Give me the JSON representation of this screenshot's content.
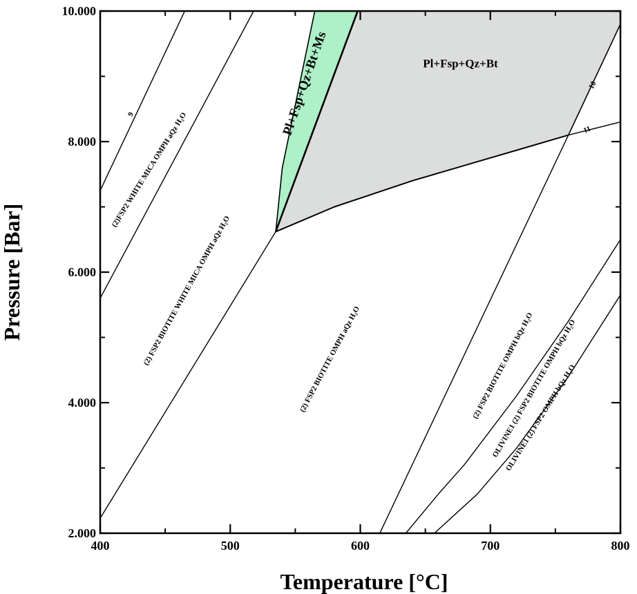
{
  "chart_data": {
    "type": "phase_diagram",
    "xlabel": "Temperature [°C]",
    "ylabel": "Pressure [Bar]",
    "xlim": [
      400,
      800
    ],
    "ylim": [
      2000,
      10000
    ],
    "x_ticks": [
      400,
      500,
      600,
      700,
      800
    ],
    "x_tick_labels": [
      "400",
      "500",
      "600",
      "700",
      "800"
    ],
    "y_ticks": [
      2000,
      4000,
      6000,
      8000,
      10000
    ],
    "y_tick_labels": [
      "2.000",
      "4.000",
      "6.000",
      "8.000",
      "10.000"
    ],
    "colors": {
      "green_field": "#aef0c8",
      "grey_field": "#dcdedd",
      "line": "#000000"
    },
    "fields": [
      {
        "label": "Pl+Fsp+Qz+Bt+Ms",
        "color": "green",
        "polygon": [
          [
            535,
            6620
          ],
          [
            540,
            7600
          ],
          [
            565,
            10000
          ],
          [
            598,
            10000
          ]
        ]
      },
      {
        "label": "Pl+Fsp+Qz+Bt",
        "color": "grey",
        "polygon": [
          [
            535,
            6620
          ],
          [
            598,
            10000
          ],
          [
            800,
            10000
          ],
          [
            800,
            9800
          ],
          [
            760,
            8100
          ],
          [
            700,
            7750
          ],
          [
            640,
            7400
          ],
          [
            580,
            7000
          ]
        ]
      }
    ],
    "lines": [
      {
        "id": "bt-ms-boundary",
        "width": 2.6,
        "points": [
          [
            535,
            6620
          ],
          [
            598,
            10000
          ]
        ]
      },
      {
        "id": "green-left-boundary",
        "width": 1.6,
        "points": [
          [
            535,
            6620
          ],
          [
            540,
            7600
          ],
          [
            565,
            10000
          ]
        ]
      },
      {
        "id": "grey-lower-boundary",
        "width": 2.0,
        "points": [
          [
            535,
            6620
          ],
          [
            580,
            7000
          ],
          [
            640,
            7400
          ],
          [
            700,
            7750
          ],
          [
            760,
            8100
          ]
        ]
      },
      {
        "id": "grey-right-boundary",
        "width": 1.6,
        "points": [
          [
            760,
            8100
          ],
          [
            800,
            9800
          ]
        ]
      },
      {
        "id": "isopleth-9",
        "width": 1.4,
        "points": [
          [
            400,
            7250
          ],
          [
            465,
            10000
          ]
        ]
      },
      {
        "id": "boundary-white-mica",
        "width": 1.4,
        "points": [
          [
            400,
            5600
          ],
          [
            518,
            10000
          ]
        ]
      },
      {
        "id": "boundary-lower-left",
        "width": 1.4,
        "points": [
          [
            400,
            2230
          ],
          [
            535,
            6620
          ]
        ]
      },
      {
        "id": "boundary-omph-bqz",
        "width": 1.4,
        "points": [
          [
            615,
            2000
          ],
          [
            760,
            8100
          ]
        ]
      },
      {
        "id": "isopleth-11",
        "width": 1.4,
        "points": [
          [
            760,
            8100
          ],
          [
            800,
            8300
          ]
        ]
      },
      {
        "id": "boundary-olivine-1",
        "width": 1.4,
        "points": [
          [
            635,
            2000
          ],
          [
            660,
            2600
          ],
          [
            680,
            3050
          ],
          [
            720,
            4100
          ],
          [
            760,
            5250
          ],
          [
            800,
            6500
          ]
        ]
      },
      {
        "id": "boundary-olivine-2",
        "width": 1.4,
        "points": [
          [
            657,
            2000
          ],
          [
            690,
            2600
          ],
          [
            720,
            3300
          ],
          [
            760,
            4400
          ],
          [
            800,
            5650
          ]
        ]
      }
    ],
    "annotations": [
      {
        "text": "(2) FSP2 BIOTITE WHITE MICA OMPH aQz H₂O",
        "x": 468,
        "y": 5700,
        "angle": -61,
        "size": 10.5
      },
      {
        "text": "(2)FSP2 WHITE MICA OMPH aQz H₂O",
        "x": 439,
        "y": 7550,
        "angle": -58,
        "size": 10.5
      },
      {
        "text": "9",
        "x": 425,
        "y": 8400,
        "angle": -60,
        "size": 12
      },
      {
        "text": "(2) FSP2 BIOTITE OMPH aQz H₂O",
        "x": 578,
        "y": 4650,
        "angle": -62,
        "size": 10.5
      },
      {
        "text": "(2) FSP2 BIOTITE OMPH bQz H₂O",
        "x": 711,
        "y": 4550,
        "angle": -62,
        "size": 10.5
      },
      {
        "text": "OLIVINE1 (2) FSP2 BIOTITE OMPH bQz H₂O",
        "x": 735,
        "y": 4200,
        "angle": -60,
        "size": 10.5
      },
      {
        "text": "OLIVINE1 (2) FSP2 OMPH bQz H₂O",
        "x": 740,
        "y": 3750,
        "angle": -58,
        "size": 10.5
      },
      {
        "text": "10",
        "x": 780,
        "y": 8850,
        "angle": -62,
        "size": 12
      },
      {
        "text": "11",
        "x": 775,
        "y": 8150,
        "angle": -22,
        "size": 12
      }
    ]
  }
}
